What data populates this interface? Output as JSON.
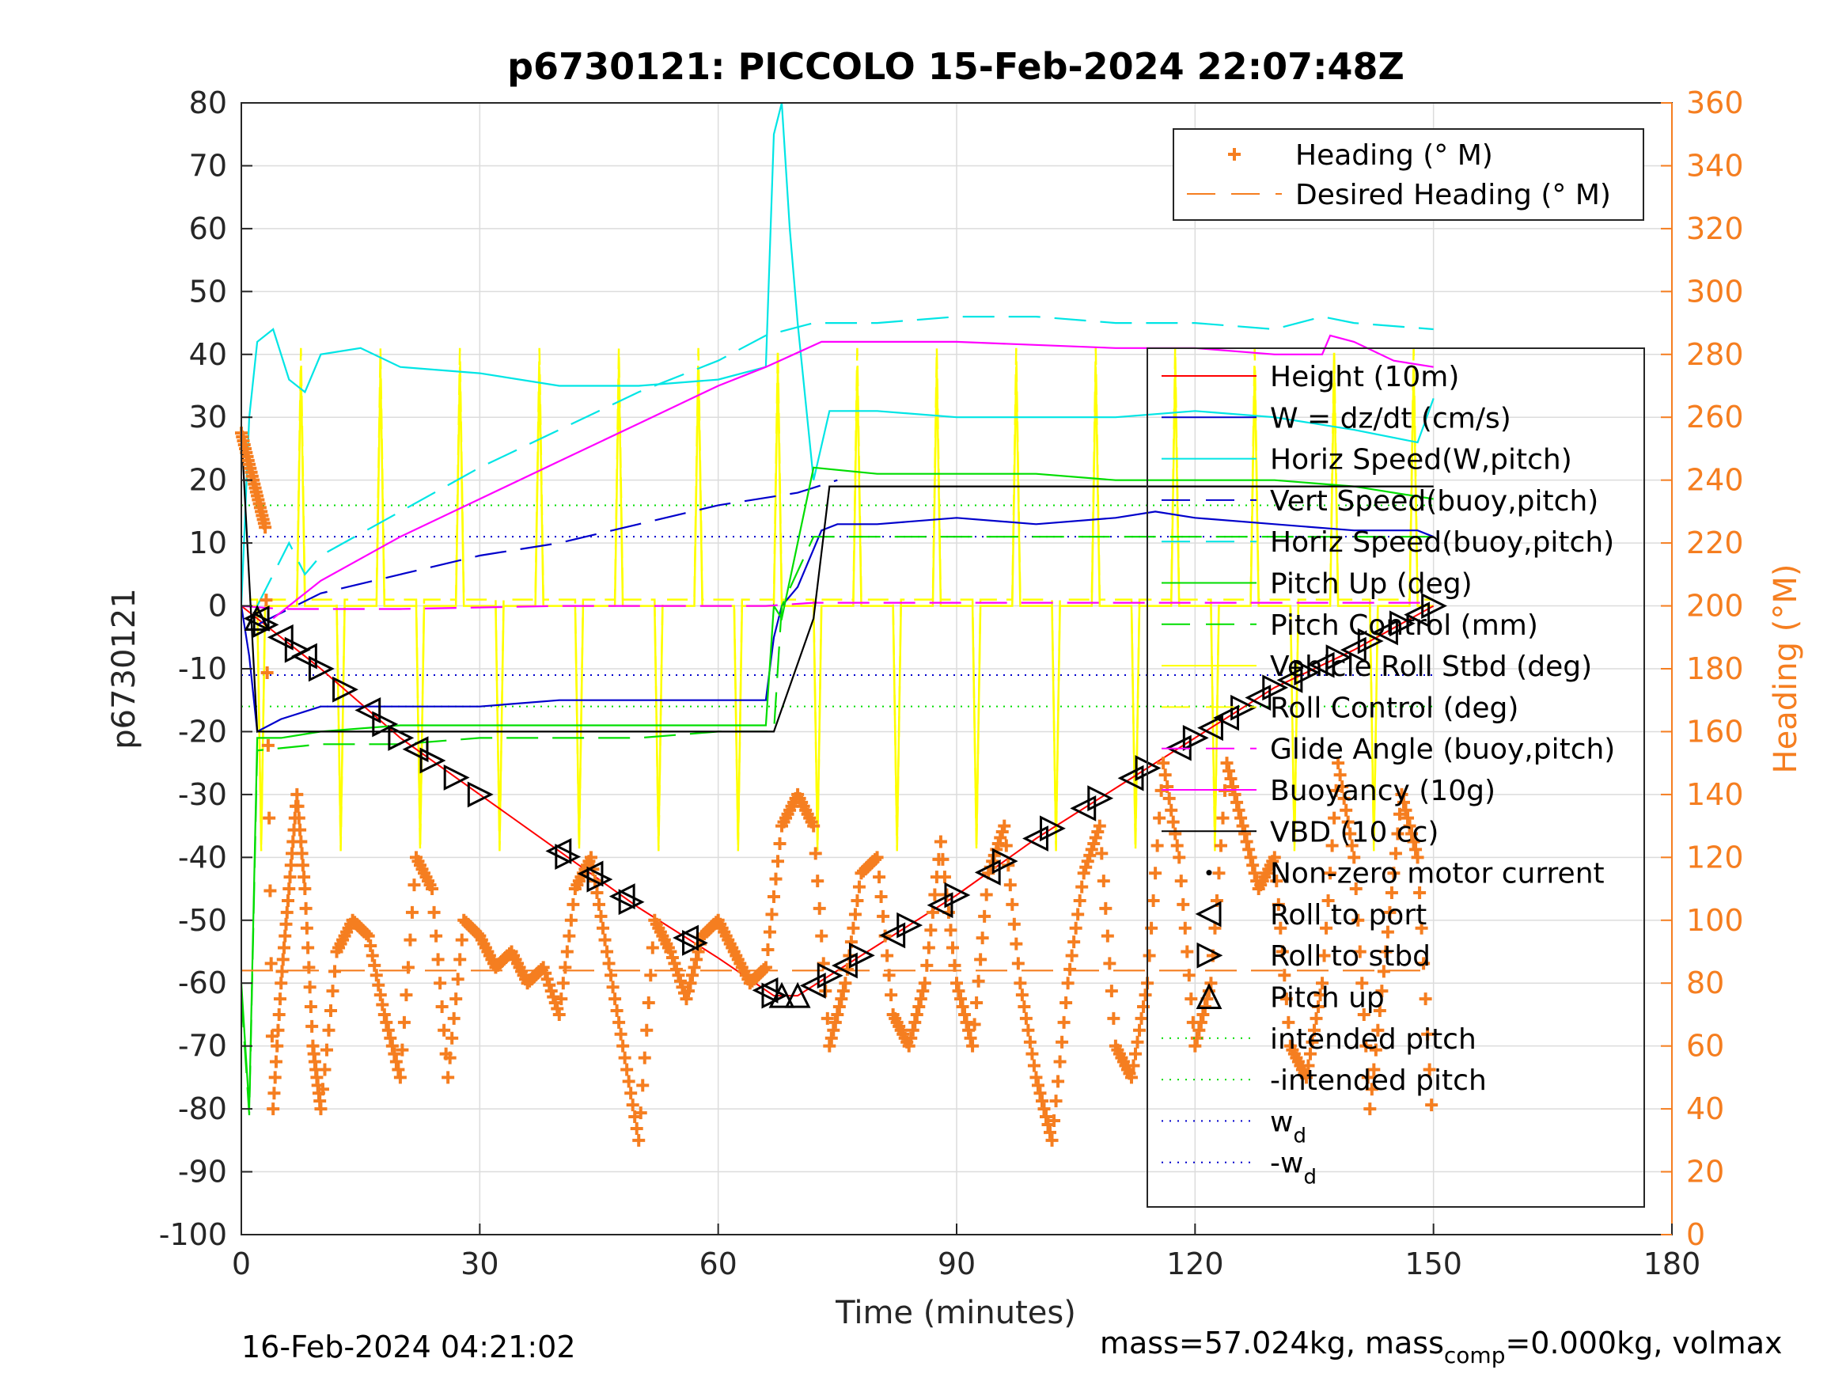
{
  "chart_data": {
    "type": "line",
    "title": "p6730121: PICCOLO 15-Feb-2024 22:07:48Z",
    "xlabel": "Time (minutes)",
    "ylabel": "p6730121",
    "y2label": "Heading (°M)",
    "xlim": [
      0,
      180
    ],
    "ylim": [
      -100,
      80
    ],
    "y2lim": [
      0,
      360
    ],
    "xticks": [
      0,
      30,
      60,
      90,
      120,
      150,
      180
    ],
    "yticks": [
      -100,
      -90,
      -80,
      -70,
      -60,
      -50,
      -40,
      -30,
      -20,
      -10,
      0,
      10,
      20,
      30,
      40,
      50,
      60,
      70,
      80
    ],
    "y2ticks": [
      0,
      20,
      40,
      60,
      80,
      100,
      120,
      140,
      160,
      180,
      200,
      220,
      240,
      260,
      280,
      300,
      320,
      340,
      360
    ],
    "grid": true,
    "legend_top": [
      {
        "label": "Heading (° M)",
        "color": "#f57e20",
        "style": "plus"
      },
      {
        "label": "Desired Heading (° M)",
        "color": "#f57e20",
        "style": "dash"
      }
    ],
    "legend_main": [
      {
        "label": "Height (10m)",
        "color": "#ff0000",
        "style": "solid"
      },
      {
        "label": "W = dz/dt (cm/s)",
        "color": "#0000cc",
        "style": "solid"
      },
      {
        "label": "Horiz Speed(W,pitch)",
        "color": "#00e5e5",
        "style": "solid"
      },
      {
        "label": "Vert Speed(buoy,pitch)",
        "color": "#0000cc",
        "style": "dash"
      },
      {
        "label": "Horiz Speed(buoy,pitch)",
        "color": "#00e5e5",
        "style": "dash"
      },
      {
        "label": "Pitch Up (deg)",
        "color": "#00dd00",
        "style": "solid"
      },
      {
        "label": "Pitch Control (mm)",
        "color": "#00dd00",
        "style": "dash"
      },
      {
        "label": "Vehicle Roll Stbd (deg)",
        "color": "#ffff00",
        "style": "solid"
      },
      {
        "label": "Roll Control (deg)",
        "color": "#ffff00",
        "style": "dash"
      },
      {
        "label": "Glide Angle (buoy,pitch)",
        "color": "#ff00ff",
        "style": "dash"
      },
      {
        "label": "Buoyancy (10g)",
        "color": "#ff00ff",
        "style": "solid"
      },
      {
        "label": "VBD (10 cc)",
        "color": "#000000",
        "style": "solid"
      },
      {
        "label": "Non-zero motor current",
        "color": "#000000",
        "style": "dot"
      },
      {
        "label": "Roll to port",
        "color": "#000000",
        "style": "tri-left"
      },
      {
        "label": "Roll to stbd",
        "color": "#000000",
        "style": "tri-right"
      },
      {
        "label": "Pitch up",
        "color": "#000000",
        "style": "tri-up"
      },
      {
        "label": "intended pitch",
        "color": "#00dd00",
        "style": "dotted"
      },
      {
        "label": "-intended pitch",
        "color": "#00dd00",
        "style": "dotted"
      },
      {
        "label": "w",
        "sub": "d",
        "color": "#0000cc",
        "style": "dotted"
      },
      {
        "label": "-w",
        "sub": "d",
        "color": "#0000cc",
        "style": "dotted"
      }
    ],
    "series": [
      {
        "name": "Height (10m)",
        "color": "#ff0000",
        "x": [
          0,
          1,
          10,
          20,
          30,
          40,
          50,
          60,
          67,
          70,
          80,
          90,
          100,
          110,
          120,
          130,
          140,
          150
        ],
        "y": [
          0,
          -1,
          -10,
          -21,
          -30,
          -39,
          -48,
          -56,
          -62,
          -62,
          -54,
          -46,
          -37,
          -29,
          -21,
          -13,
          -7,
          0
        ]
      },
      {
        "name": "W = dz/dt (cm/s)",
        "color": "#0000cc",
        "x": [
          0,
          1,
          2,
          5,
          10,
          20,
          30,
          40,
          50,
          60,
          66,
          67,
          68,
          70,
          73,
          75,
          80,
          90,
          100,
          110,
          115,
          120,
          130,
          140,
          148,
          150
        ],
        "y": [
          0,
          -8,
          -20,
          -18,
          -16,
          -16,
          -16,
          -15,
          -15,
          -15,
          -15,
          -5,
          0,
          3,
          12,
          13,
          13,
          14,
          13,
          14,
          15,
          14,
          13,
          12,
          12,
          11
        ]
      },
      {
        "name": "Horiz Speed(W,pitch)",
        "color": "#00e5e5",
        "x": [
          0,
          1,
          2,
          4,
          6,
          8,
          10,
          15,
          20,
          30,
          40,
          50,
          60,
          66,
          67,
          68,
          69,
          70,
          72,
          74,
          80,
          90,
          100,
          110,
          120,
          130,
          140,
          148,
          150
        ],
        "y": [
          0,
          30,
          42,
          44,
          36,
          34,
          40,
          41,
          38,
          37,
          35,
          35,
          36,
          38,
          75,
          80,
          60,
          45,
          20,
          31,
          31,
          30,
          30,
          30,
          31,
          30,
          28,
          26,
          33
        ]
      },
      {
        "name": "Vert Speed(buoy,pitch)",
        "color": "#0000cc",
        "x": [
          2,
          10,
          20,
          30,
          40,
          50,
          60,
          70,
          75
        ],
        "y": [
          -3,
          2,
          5,
          8,
          10,
          13,
          16,
          18,
          20
        ]
      },
      {
        "name": "Horiz Speed(buoy,pitch)",
        "color": "#00e5e5",
        "x": [
          2,
          6,
          8,
          10,
          20,
          30,
          40,
          50,
          60,
          66,
          72,
          80,
          90,
          100,
          110,
          120,
          130,
          136,
          140,
          150
        ],
        "y": [
          0,
          10,
          5,
          8,
          15,
          22,
          28,
          34,
          39,
          43,
          45,
          45,
          46,
          46,
          45,
          45,
          44,
          46,
          45,
          44
        ]
      },
      {
        "name": "Pitch Up (deg)",
        "color": "#00dd00",
        "x": [
          0,
          1,
          2,
          5,
          10,
          20,
          30,
          40,
          50,
          60,
          66,
          67,
          68,
          70,
          72,
          80,
          90,
          100,
          110,
          120,
          130,
          140,
          150
        ],
        "y": [
          -60,
          -80,
          -21,
          -21,
          -20,
          -19,
          -19,
          -19,
          -19,
          -19,
          -19,
          0,
          -2,
          10,
          22,
          21,
          21,
          21,
          20,
          20,
          20,
          19,
          17
        ]
      },
      {
        "name": "Pitch Control (mm)",
        "color": "#00dd00",
        "x": [
          0,
          1,
          2,
          10,
          20,
          30,
          40,
          50,
          60,
          67,
          68,
          72,
          80,
          90,
          100,
          110,
          120,
          130,
          140,
          150
        ],
        "y": [
          -62,
          -81,
          -23,
          -22,
          -22,
          -21,
          -21,
          -21,
          -20,
          -20,
          0,
          11,
          11,
          11,
          11,
          11,
          11,
          11,
          11,
          11
        ]
      },
      {
        "name": "Glide Angle (buoy,pitch)",
        "color": "#ff00ff",
        "x": [
          0,
          5,
          20,
          40,
          60,
          66,
          72,
          90,
          120,
          148,
          150
        ],
        "y": [
          0,
          -0.5,
          -0.5,
          0,
          0,
          0,
          0.5,
          0.5,
          0.5,
          0.5,
          0.5
        ]
      },
      {
        "name": "Buoyancy (10g)",
        "color": "#ff00ff",
        "x": [
          4,
          10,
          20,
          30,
          40,
          50,
          60,
          66,
          73,
          90,
          110,
          120,
          130,
          136,
          137,
          140,
          145,
          150
        ],
        "y": [
          -2,
          4,
          11,
          17,
          23,
          29,
          35,
          38,
          42,
          42,
          41,
          41,
          40,
          40,
          43,
          42,
          39,
          38
        ]
      },
      {
        "name": "VBD (10 cc)",
        "color": "#000000",
        "x": [
          0,
          2,
          4,
          6,
          10,
          20,
          30,
          40,
          50,
          60,
          66.5,
          67,
          72,
          74,
          80,
          90,
          100,
          110,
          120,
          130,
          135,
          136,
          140,
          150
        ],
        "y": [
          28,
          -20,
          -20,
          -20,
          -20,
          -20,
          -20,
          -20,
          -20,
          -20,
          -20,
          -20,
          -2,
          19,
          19,
          19,
          19,
          19,
          19,
          19,
          19,
          19,
          19,
          19
        ]
      },
      {
        "name": "Heading (° M)",
        "color": "#f57e20",
        "y_axis": "right",
        "x": [
          0,
          1,
          2,
          3,
          4,
          5,
          6,
          7,
          8,
          9,
          10,
          12,
          14,
          16,
          18,
          20,
          22,
          24,
          26,
          28,
          30,
          32,
          34,
          36,
          38,
          40,
          42,
          44,
          46,
          48,
          50,
          52,
          54,
          56,
          58,
          60,
          62,
          64,
          66,
          68,
          70,
          72,
          74,
          76,
          78,
          80,
          82,
          84,
          86,
          88,
          90,
          92,
          94,
          96,
          98,
          100,
          102,
          104,
          106,
          108,
          110,
          112,
          114,
          116,
          118,
          120,
          122,
          124,
          126,
          128,
          130,
          132,
          134,
          136,
          138,
          140,
          142,
          144,
          146,
          148,
          150
        ],
        "y": [
          255,
          245,
          235,
          225,
          40,
          80,
          110,
          140,
          110,
          60,
          40,
          90,
          100,
          95,
          70,
          50,
          120,
          110,
          50,
          100,
          95,
          85,
          90,
          80,
          85,
          70,
          110,
          120,
          90,
          60,
          30,
          100,
          90,
          75,
          95,
          100,
          90,
          80,
          85,
          130,
          140,
          130,
          60,
          80,
          115,
          120,
          70,
          60,
          80,
          125,
          80,
          60,
          115,
          130,
          80,
          50,
          30,
          80,
          115,
          130,
          60,
          50,
          80,
          150,
          120,
          60,
          80,
          150,
          130,
          110,
          120,
          60,
          50,
          80,
          150,
          120,
          40,
          90,
          140,
          120,
          30
        ]
      },
      {
        "name": "Desired Heading (° M)",
        "color": "#f57e20",
        "y_axis": "right",
        "x": [
          0,
          150
        ],
        "y": [
          84,
          84
        ]
      }
    ],
    "markers": {
      "roll_to_port_x": [
        2,
        5,
        8,
        16,
        22,
        40,
        44,
        48,
        56,
        66,
        72,
        76,
        82,
        88,
        94,
        100,
        106,
        112,
        118,
        122,
        124,
        128,
        132,
        136,
        140,
        144,
        148
      ],
      "roll_to_stbd_x": [
        3,
        7,
        10,
        13,
        18,
        20,
        24,
        27,
        30,
        41,
        45,
        49,
        57,
        67,
        74,
        78,
        84,
        90,
        96,
        102,
        108,
        114,
        120,
        126,
        130,
        134,
        138,
        142,
        146,
        150
      ],
      "pitch_up_x": [
        2,
        68,
        70
      ]
    },
    "reference_lines": {
      "intended_pitch": 16,
      "minus_intended_pitch": -16,
      "w_d": 11,
      "minus_w_d": -11
    }
  },
  "footer": {
    "left": "16-Feb-2024 04:21:02",
    "right_a": "mass=57.024kg, mass",
    "right_sub": "comp",
    "right_b": "=0.000kg, volmax"
  }
}
